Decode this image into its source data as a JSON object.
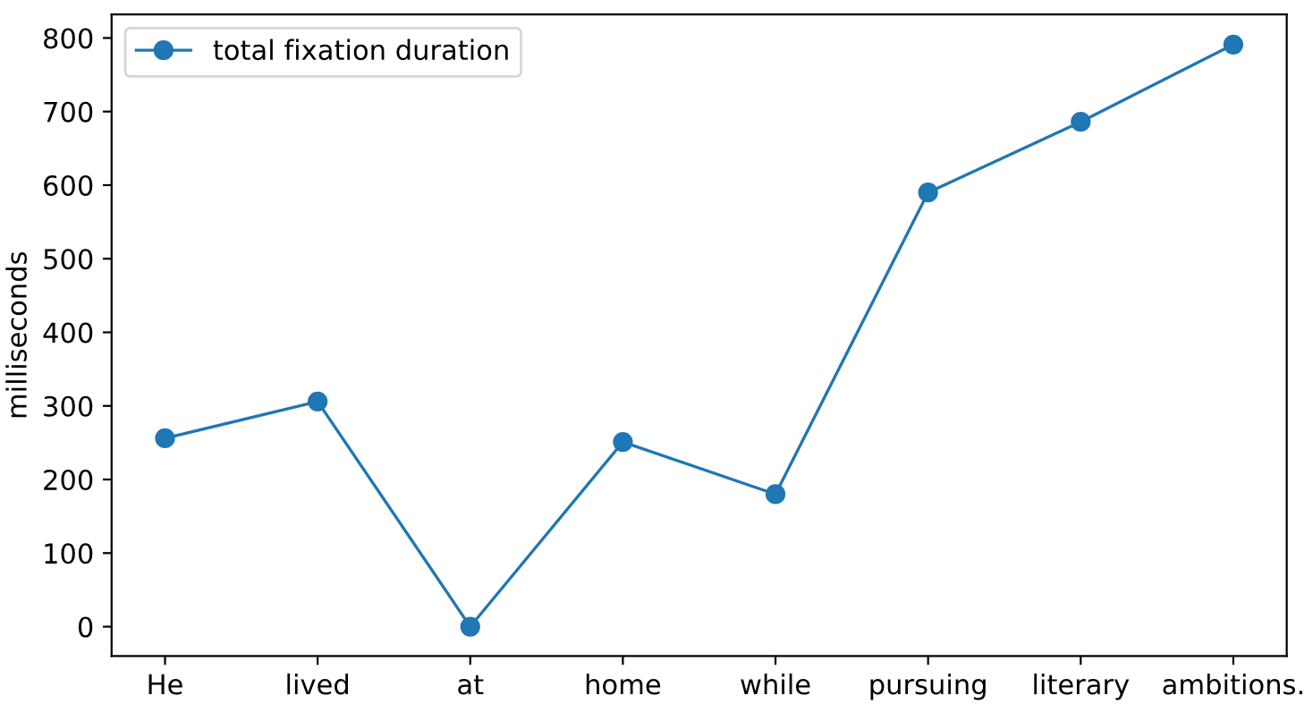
{
  "chart_data": {
    "type": "line",
    "ylabel": "milliseconds",
    "categories": [
      "He",
      "lived",
      "at",
      "home",
      "while",
      "pursuing",
      "literary",
      "ambitions."
    ],
    "series": [
      {
        "name": "total fixation duration",
        "color": "#1f77b4",
        "values": [
          256,
          306,
          0,
          251,
          180,
          590,
          686,
          791
        ]
      }
    ],
    "ylim": [
      -40,
      832
    ],
    "yticks": [
      0,
      100,
      200,
      300,
      400,
      500,
      600,
      700,
      800
    ],
    "legend": "top left",
    "marker": "circle",
    "line_style": "solid",
    "grid": false
  }
}
